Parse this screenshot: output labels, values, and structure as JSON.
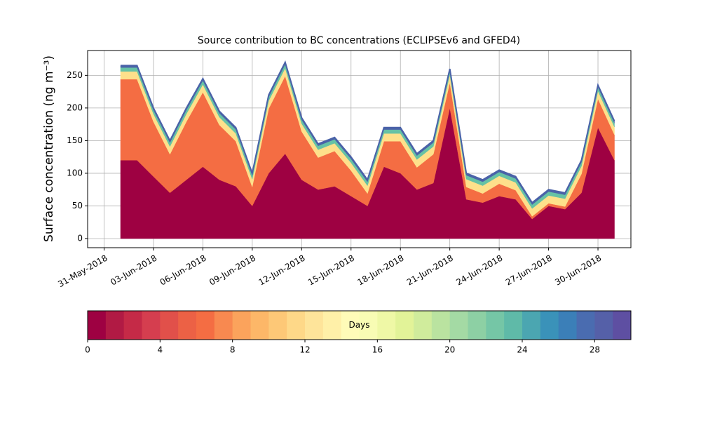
{
  "chart_data": {
    "type": "stacked_area",
    "title": "Source contribution to BC concentrations (ECLIPSEv6 and GFED4)",
    "ylabel": "Surface concentration (ng m⁻³)",
    "x": [
      "2018-06-01",
      "2018-06-02",
      "2018-06-03",
      "2018-06-04",
      "2018-06-05",
      "2018-06-06",
      "2018-06-07",
      "2018-06-08",
      "2018-06-09",
      "2018-06-10",
      "2018-06-11",
      "2018-06-12",
      "2018-06-13",
      "2018-06-14",
      "2018-06-15",
      "2018-06-16",
      "2018-06-17",
      "2018-06-18",
      "2018-06-19",
      "2018-06-20",
      "2018-06-21",
      "2018-06-22",
      "2018-06-23",
      "2018-06-24",
      "2018-06-25",
      "2018-06-26",
      "2018-06-27",
      "2018-06-28",
      "2018-06-29",
      "2018-06-30",
      "2018-07-01"
    ],
    "series": [
      {
        "color": "#9e0142",
        "values": [
          120,
          120,
          95,
          70,
          90,
          110,
          90,
          80,
          50,
          100,
          130,
          90,
          75,
          80,
          65,
          50,
          110,
          100,
          75,
          85,
          200,
          60,
          55,
          65,
          60,
          30,
          50,
          45,
          70,
          170,
          120
        ]
      },
      {
        "color": "#f46d43",
        "values": [
          124,
          124,
          84,
          59,
          89,
          114,
          84,
          69,
          29,
          99,
          119,
          74,
          49,
          54,
          39,
          19,
          39,
          49,
          34,
          44,
          39,
          19,
          14,
          19,
          14,
          4,
          4,
          4,
          29,
          44,
          39
        ]
      },
      {
        "color": "#fee08b",
        "values": [
          12,
          12,
          12,
          12,
          12,
          12,
          12,
          12,
          12,
          12,
          12,
          12,
          12,
          12,
          12,
          12,
          12,
          12,
          12,
          12,
          12,
          12,
          12,
          12,
          12,
          12,
          12,
          12,
          12,
          12,
          12
        ]
      },
      {
        "color": "#66c2a5",
        "values": [
          6,
          6,
          6,
          6,
          6,
          6,
          6,
          6,
          6,
          6,
          6,
          6,
          6,
          6,
          6,
          6,
          6,
          6,
          6,
          6,
          6,
          6,
          6,
          6,
          6,
          6,
          6,
          6,
          6,
          6,
          6
        ]
      },
      {
        "color": "#4a62a8",
        "values": [
          3,
          3,
          3,
          3,
          3,
          3,
          3,
          3,
          3,
          3,
          3,
          3,
          3,
          3,
          3,
          3,
          3,
          3,
          3,
          3,
          3,
          3,
          3,
          3,
          3,
          3,
          3,
          3,
          3,
          3,
          3
        ]
      }
    ],
    "xlim": [
      "2018-05-30",
      "2018-07-02"
    ],
    "xticks": [
      {
        "value": "2018-05-31",
        "label": "31-May-2018"
      },
      {
        "value": "2018-06-03",
        "label": "03-Jun-2018"
      },
      {
        "value": "2018-06-06",
        "label": "06-Jun-2018"
      },
      {
        "value": "2018-06-09",
        "label": "09-Jun-2018"
      },
      {
        "value": "2018-06-12",
        "label": "12-Jun-2018"
      },
      {
        "value": "2018-06-15",
        "label": "15-Jun-2018"
      },
      {
        "value": "2018-06-18",
        "label": "18-Jun-2018"
      },
      {
        "value": "2018-06-21",
        "label": "21-Jun-2018"
      },
      {
        "value": "2018-06-24",
        "label": "24-Jun-2018"
      },
      {
        "value": "2018-06-27",
        "label": "27-Jun-2018"
      },
      {
        "value": "2018-06-30",
        "label": "30-Jun-2018"
      }
    ],
    "ylim": [
      -14,
      288
    ],
    "yticks": [
      0,
      50,
      100,
      150,
      200,
      250
    ],
    "grid": true,
    "colorbar": {
      "label": "Days",
      "lim": [
        0,
        30
      ],
      "ticks": [
        0,
        4,
        8,
        12,
        16,
        20,
        24,
        28
      ],
      "colors": [
        "#9e0142",
        "#b11a44",
        "#c52a47",
        "#d53e4f",
        "#e1504a",
        "#ec6145",
        "#f46d43",
        "#f88950",
        "#fba35c",
        "#fdb768",
        "#fdc877",
        "#fed888",
        "#fee49a",
        "#fff0a8",
        "#fffbb8",
        "#f8fcb4",
        "#eff8a6",
        "#e2f398",
        "#d0ec9c",
        "#bae3a0",
        "#a4daa4",
        "#8dd0a4",
        "#75c6a6",
        "#5fbaa8",
        "#4ba6b1",
        "#3a92b9",
        "#3b7fb8",
        "#4a6cb0",
        "#5560a8",
        "#5e4fa2"
      ]
    }
  }
}
